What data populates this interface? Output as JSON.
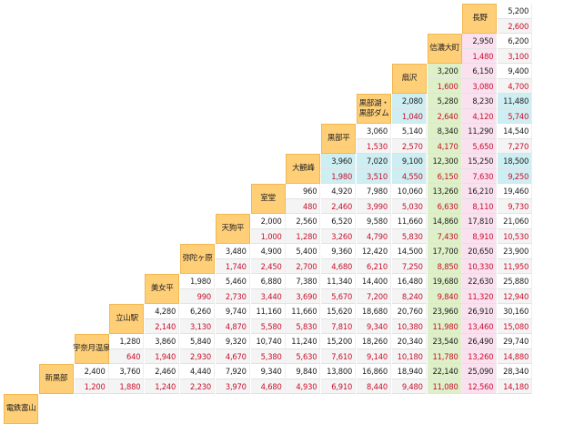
{
  "fare_table": {
    "stations": [
      "電鉄富山",
      "新黒部",
      "宇奈月温泉",
      "立山駅",
      "美女平",
      "弥陀ヶ原",
      "天狗平",
      "室堂",
      "大観峰",
      "黒部平",
      "黒部湖・\n黒部ダム",
      "扇沢",
      "信濃大町",
      "長野"
    ],
    "colors": {
      "header_bg": "#ffcf78",
      "default_row": [
        "#ffffff",
        "#f4f4f4"
      ],
      "row_band": {
        "3": "#cdeef2",
        "5": "#cdeef2"
      },
      "col_band": {
        "12": "#ddf0c8",
        "13": "#fbe0f0"
      },
      "fare_top": "#222222",
      "fare_bottom": "#c8102e"
    },
    "rows": [
      {
        "top": [
          "5,200"
        ],
        "bottom": [
          "2,600"
        ]
      },
      {
        "top": [
          "2,950",
          "6,200"
        ],
        "bottom": [
          "1,480",
          "3,100"
        ]
      },
      {
        "top": [
          "3,200",
          "6,150",
          "9,400"
        ],
        "bottom": [
          "1,600",
          "3,080",
          "4,700"
        ]
      },
      {
        "top": [
          "2,080",
          "5,280",
          "8,230",
          "11,480"
        ],
        "bottom": [
          "1,040",
          "2,640",
          "4,120",
          "5,740"
        ]
      },
      {
        "top": [
          "3,060",
          "5,140",
          "8,340",
          "11,290",
          "14,540"
        ],
        "bottom": [
          "1,530",
          "2,570",
          "4,170",
          "5,650",
          "7,270"
        ]
      },
      {
        "top": [
          "3,960",
          "7,020",
          "9,100",
          "12,300",
          "15,250",
          "18,500"
        ],
        "bottom": [
          "1,980",
          "3,510",
          "4,550",
          "6,150",
          "7,630",
          "9,250"
        ]
      },
      {
        "top": [
          "960",
          "4,920",
          "7,980",
          "10,060",
          "13,260",
          "16,210",
          "19,460"
        ],
        "bottom": [
          "480",
          "2,460",
          "3,990",
          "5,030",
          "6,630",
          "8,110",
          "9,730"
        ]
      },
      {
        "top": [
          "2,000",
          "2,560",
          "6,520",
          "9,580",
          "11,660",
          "14,860",
          "17,810",
          "21,060"
        ],
        "bottom": [
          "1,000",
          "1,280",
          "3,260",
          "4,790",
          "5,830",
          "7,430",
          "8,910",
          "10,530"
        ]
      },
      {
        "top": [
          "3,480",
          "4,900",
          "5,400",
          "9,360",
          "12,420",
          "14,500",
          "17,700",
          "20,650",
          "23,900"
        ],
        "bottom": [
          "1,740",
          "2,450",
          "2,700",
          "4,680",
          "6,210",
          "7,250",
          "8,850",
          "10,330",
          "11,950"
        ]
      },
      {
        "top": [
          "1,980",
          "5,460",
          "6,880",
          "7,380",
          "11,340",
          "14,400",
          "16,480",
          "19,680",
          "22,630",
          "25,880"
        ],
        "bottom": [
          "990",
          "2,730",
          "3,440",
          "3,690",
          "5,670",
          "7,200",
          "8,240",
          "9,840",
          "11,320",
          "12,940"
        ]
      },
      {
        "top": [
          "4,280",
          "6,260",
          "9,740",
          "11,160",
          "11,660",
          "15,620",
          "18,680",
          "20,760",
          "23,960",
          "26,910",
          "30,160"
        ],
        "bottom": [
          "2,140",
          "3,130",
          "4,870",
          "5,580",
          "5,830",
          "7,810",
          "9,340",
          "10,380",
          "11,980",
          "13,460",
          "15,080"
        ]
      },
      {
        "top": [
          "1,280",
          "3,860",
          "5,840",
          "9,320",
          "10,740",
          "11,240",
          "15,200",
          "18,260",
          "20,340",
          "23,540",
          "26,490",
          "29,740"
        ],
        "bottom": [
          "640",
          "1,940",
          "2,930",
          "4,670",
          "5,380",
          "5,630",
          "7,610",
          "9,140",
          "10,180",
          "11,780",
          "13,260",
          "14,880"
        ]
      },
      {
        "top": [
          "2,400",
          "3,760",
          "2,460",
          "4,440",
          "7,920",
          "9,340",
          "9,840",
          "13,800",
          "16,860",
          "18,940",
          "22,140",
          "25,090",
          "28,340"
        ],
        "bottom": [
          "1,200",
          "1,880",
          "1,240",
          "2,230",
          "3,970",
          "4,680",
          "4,930",
          "6,910",
          "8,440",
          "9,480",
          "11,080",
          "12,560",
          "14,180"
        ]
      }
    ]
  }
}
